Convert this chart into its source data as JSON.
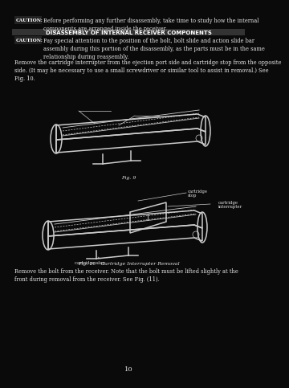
{
  "bg_color": "#0a0a0a",
  "text_color": "#1a1a1a",
  "line_color": "#1a1a1a",
  "caution1_label": "CAUTION:",
  "caution1_text": "Before performing any further disassembly, take time to study how the internal\ncomponents are arranged inside the receiver.",
  "header_text": "DISASSEMBLY OF INTERNAL RECEIVER COMPONENTS",
  "caution2_label": "CAUTION:",
  "caution2_text": "Pay special attention to the position of the bolt, bolt slide and action slide bar\nassembly during this portion of the disassembly, as the parts must be in the same\nrelationship during reassembly.",
  "body_text1": "Remove the cartridge interrupter from the ejection port side and cartridge stop from the opposite\nside. (It may be necessary to use a small screwdriver or similar tool to assist in removal.) See\nFig. 10.",
  "fig1_label": "Fig. 9",
  "fig2_label": "Fig. 10 - Cartridge Interrupter Removal",
  "bottom_text": "Remove the bolt from the receiver. Note that the bolt must be lifted slightly at the\nfront during removal from the receiver. See Fig. (11).",
  "page_number": "10",
  "fontsize_body": 4.8,
  "fontsize_caption": 4.5,
  "fontsize_header": 5.0
}
